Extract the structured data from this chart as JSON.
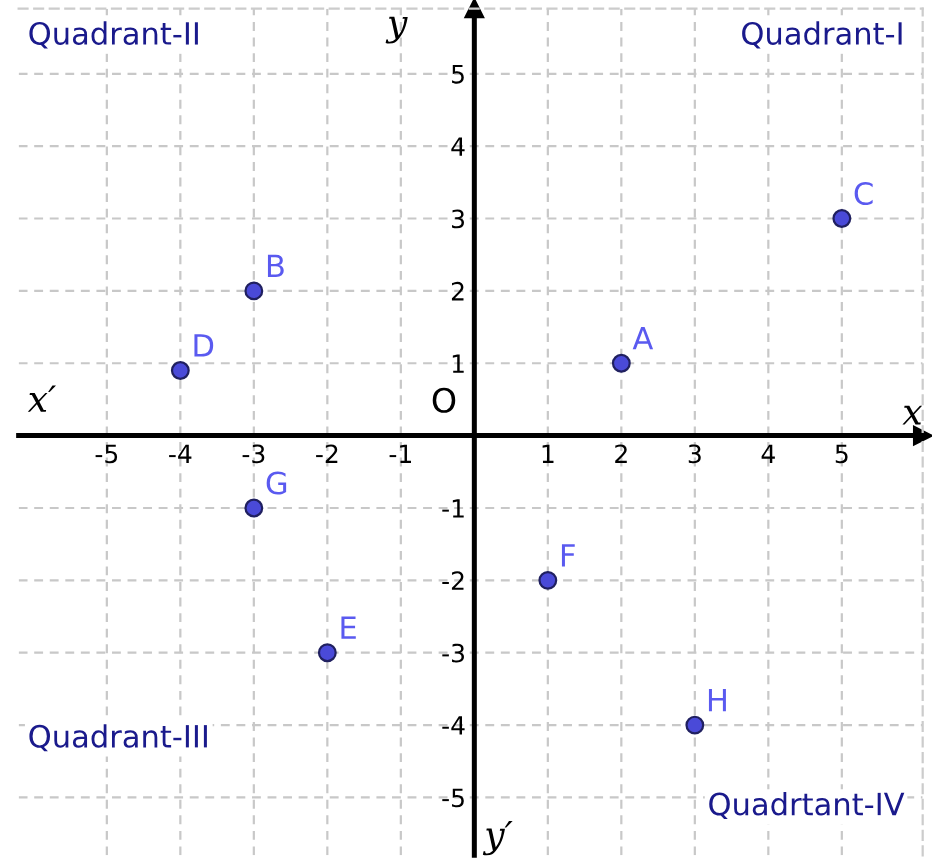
{
  "chart_data": {
    "type": "scatter",
    "xlabel": "x",
    "ylabel": "y",
    "x": [
      2,
      -3,
      5,
      -4,
      -2,
      1,
      -3,
      3
    ],
    "values": [
      1,
      2,
      3,
      0.9,
      -3,
      -2,
      -1,
      -4
    ],
    "color": "#4a4ad8",
    "marker": "circle",
    "grid": true,
    "xlim": [
      -6.2,
      6.1
    ],
    "ylim": [
      -5.8,
      5.9
    ],
    "xticks": [
      -5,
      -4,
      -3,
      -2,
      -1,
      1,
      2,
      3,
      4,
      5
    ],
    "yticks": [
      -5,
      -4,
      -3,
      -2,
      -1,
      1,
      2,
      3,
      4,
      5
    ],
    "annotations": [
      {
        "text": "A",
        "x": 2,
        "y": 1
      },
      {
        "text": "B",
        "x": -3,
        "y": 2
      },
      {
        "text": "C",
        "x": 5,
        "y": 3
      },
      {
        "text": "D",
        "x": -4,
        "y": 0.9
      },
      {
        "text": "E",
        "x": -2,
        "y": -3
      },
      {
        "text": "F",
        "x": 1,
        "y": -2
      },
      {
        "text": "G",
        "x": -3,
        "y": -1
      },
      {
        "text": "H",
        "x": 3,
        "y": -4
      },
      "Quadrant-I",
      "Quadrant-II",
      "Quadrant-III",
      "Quadrtant-IV",
      "O",
      "x′",
      "y′"
    ]
  }
}
